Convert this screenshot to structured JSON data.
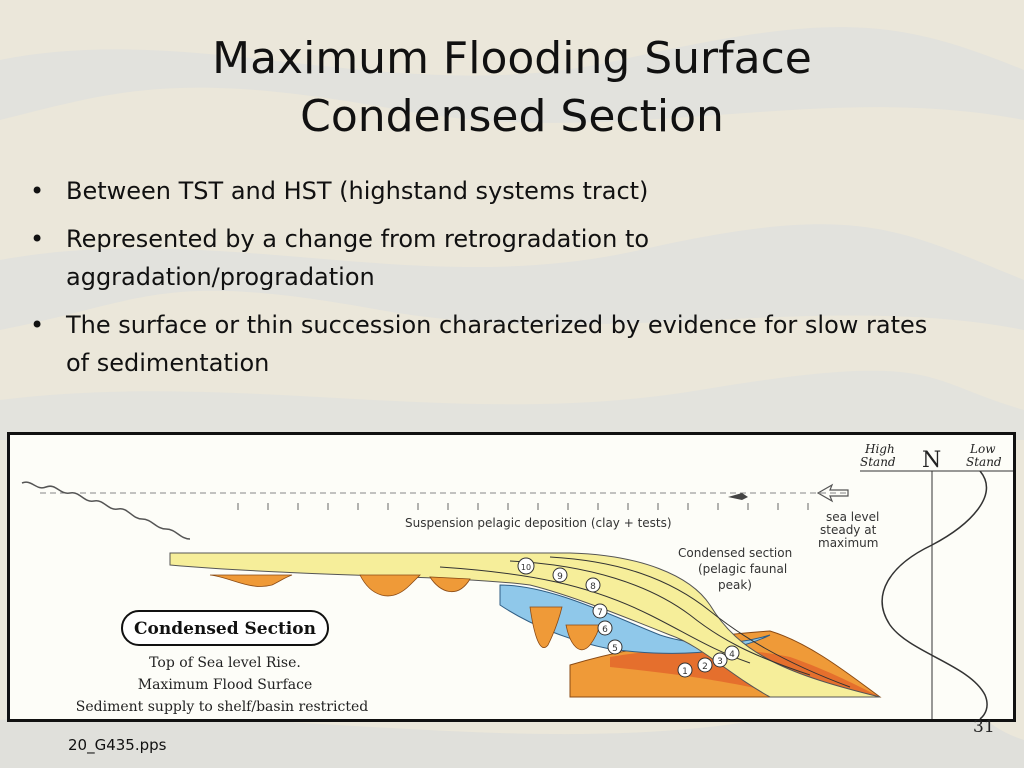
{
  "slide": {
    "title_line1": "Maximum Flooding Surface",
    "title_line2": "Condensed Section",
    "bullets": [
      "Between TST and HST (highstand systems tract)",
      "Represented by a change from retrogradation to aggradation/progradation",
      "The surface or thin succession characterized by evidence for slow rates of sedimentation"
    ],
    "bullet_symbol": "•",
    "footer": "20_G435.pps",
    "page_number": "31"
  },
  "figure": {
    "suspension_label": "Suspension pelagic deposition (clay + tests)",
    "condensed_label": [
      "Condensed section",
      "(pelagic faunal",
      "peak)"
    ],
    "sea_level_label": [
      "sea level",
      "steady at",
      "maximum"
    ],
    "high_stand": [
      "High",
      "Stand"
    ],
    "low_stand": [
      "Low",
      "Stand"
    ],
    "n_label": "N",
    "box_label": "Condensed Section",
    "box_lines": [
      "Top of Sea level Rise.",
      "Maximum Flood Surface",
      "Sediment supply to shelf/basin restricted"
    ],
    "numbers": [
      "1",
      "2",
      "3",
      "4",
      "5",
      "6",
      "7",
      "8",
      "9",
      "10"
    ],
    "colors": {
      "yellow": "#f6ee9a",
      "blue": "#8fc8ea",
      "orange": "#ef9a38",
      "red_orange": "#e2642a"
    }
  }
}
